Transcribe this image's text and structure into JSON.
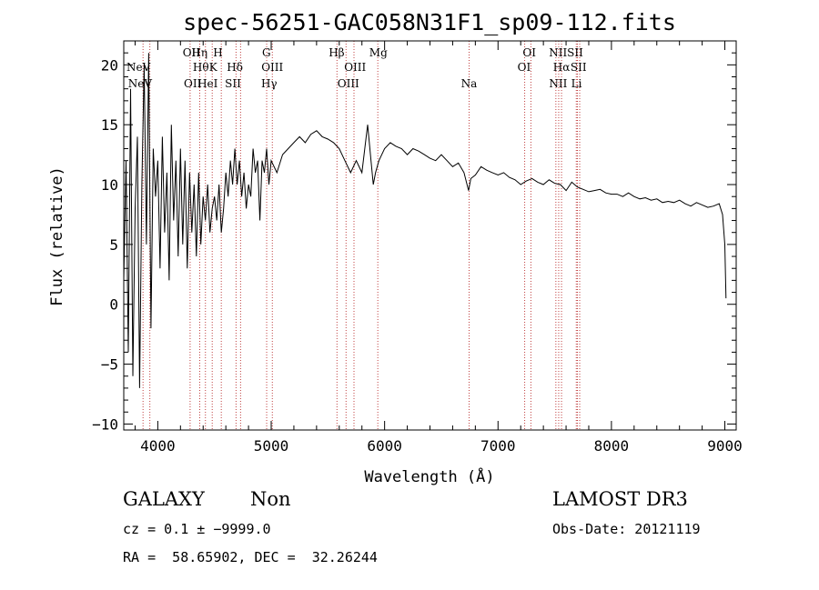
{
  "chart_data": {
    "type": "line",
    "title": "spec-56251-GAC058N31F1_sp09-112.fits",
    "xlabel": "Wavelength (Å)",
    "ylabel": "Flux (relative)",
    "xlim": [
      3700,
      9100
    ],
    "ylim": [
      -10.5,
      22
    ],
    "xticks": [
      4000,
      5000,
      6000,
      7000,
      8000,
      9000
    ],
    "yticks": [
      -10,
      -5,
      0,
      5,
      10,
      15,
      20
    ],
    "xtick_labels": [
      "4000",
      "5000",
      "6000",
      "7000",
      "8000",
      "9000"
    ],
    "ytick_labels": [
      "−10",
      "−5",
      "0",
      "5",
      "10",
      "15",
      "20"
    ],
    "grid": false,
    "series": [
      {
        "name": "flux",
        "x": [
          3700,
          3720,
          3740,
          3760,
          3780,
          3800,
          3820,
          3840,
          3860,
          3880,
          3900,
          3920,
          3940,
          3960,
          3980,
          4000,
          4020,
          4040,
          4060,
          4080,
          4100,
          4120,
          4140,
          4160,
          4180,
          4200,
          4220,
          4240,
          4260,
          4280,
          4300,
          4320,
          4340,
          4360,
          4380,
          4400,
          4420,
          4440,
          4460,
          4480,
          4500,
          4520,
          4540,
          4560,
          4580,
          4600,
          4620,
          4640,
          4660,
          4680,
          4700,
          4720,
          4740,
          4760,
          4780,
          4800,
          4820,
          4840,
          4860,
          4880,
          4900,
          4920,
          4940,
          4960,
          4980,
          5000,
          5050,
          5100,
          5150,
          5200,
          5250,
          5300,
          5350,
          5400,
          5450,
          5500,
          5550,
          5600,
          5650,
          5700,
          5750,
          5800,
          5850,
          5880,
          5900,
          5920,
          5950,
          6000,
          6050,
          6100,
          6150,
          6200,
          6250,
          6300,
          6350,
          6400,
          6450,
          6500,
          6550,
          6600,
          6650,
          6700,
          6740,
          6760,
          6800,
          6850,
          6900,
          6950,
          7000,
          7050,
          7100,
          7150,
          7200,
          7250,
          7300,
          7350,
          7400,
          7450,
          7500,
          7550,
          7600,
          7650,
          7700,
          7750,
          7800,
          7850,
          7900,
          7950,
          8000,
          8050,
          8100,
          8150,
          8200,
          8250,
          8300,
          8350,
          8400,
          8450,
          8500,
          8550,
          8600,
          8650,
          8700,
          8750,
          8800,
          8850,
          8900,
          8950,
          8980,
          9000,
          9010
        ],
        "y": [
          2,
          12,
          -4,
          18,
          -6,
          8,
          14,
          -7,
          10,
          20,
          5,
          21,
          -2,
          13,
          9,
          12,
          3,
          14,
          6,
          11,
          2,
          15,
          7,
          12,
          4,
          13,
          5,
          12,
          3,
          11,
          6,
          10,
          4,
          11,
          5,
          9,
          7,
          10,
          6,
          8,
          9,
          7,
          10,
          6,
          8,
          11,
          9,
          12,
          10,
          13,
          10,
          12,
          9,
          11,
          8,
          10,
          9,
          13,
          11,
          12,
          7,
          12,
          11,
          13,
          10,
          12,
          11,
          12.5,
          13,
          13.5,
          14,
          13.5,
          14.2,
          14.5,
          14,
          13.8,
          13.5,
          13,
          12,
          11,
          12,
          11,
          15,
          12,
          10,
          11,
          12,
          13,
          13.5,
          13.2,
          13,
          12.5,
          13,
          12.8,
          12.5,
          12.2,
          12,
          12.5,
          12,
          11.5,
          11.8,
          11,
          9.5,
          10.5,
          10.8,
          11.5,
          11.2,
          11,
          10.8,
          11,
          10.6,
          10.4,
          10,
          10.3,
          10.5,
          10.2,
          10,
          10.4,
          10.1,
          10,
          9.5,
          10.2,
          9.8,
          9.6,
          9.4,
          9.5,
          9.6,
          9.3,
          9.2,
          9.2,
          9,
          9.3,
          9,
          8.8,
          8.9,
          8.7,
          8.8,
          8.5,
          8.6,
          8.5,
          8.7,
          8.4,
          8.2,
          8.5,
          8.3,
          8.1,
          8.2,
          8.4,
          7.5,
          5,
          0.5
        ]
      }
    ],
    "spectral_lines": [
      {
        "label": "NeV",
        "x": 3830,
        "row": 1
      },
      {
        "label": "NeV",
        "x": 3844,
        "row": 2
      },
      {
        "label": "OII",
        "x": 4297,
        "row": 0
      },
      {
        "label": "Hη",
        "x": 4368,
        "row": 0
      },
      {
        "label": "H",
        "x": 4530,
        "row": 0
      },
      {
        "label": "Hθ",
        "x": 4380,
        "row": 1
      },
      {
        "label": "K",
        "x": 4488,
        "row": 1
      },
      {
        "label": "Hδ",
        "x": 4680,
        "row": 1
      },
      {
        "label": "OII",
        "x": 4307,
        "row": 2
      },
      {
        "label": "HeI",
        "x": 4440,
        "row": 2
      },
      {
        "label": "SII",
        "x": 4663,
        "row": 2
      },
      {
        "label": "G",
        "x": 4958,
        "row": 0
      },
      {
        "label": "OIII",
        "x": 5010,
        "row": 1
      },
      {
        "label": "Hγ",
        "x": 4982,
        "row": 2
      },
      {
        "label": "Hβ",
        "x": 5577,
        "row": 0
      },
      {
        "label": "OIII",
        "x": 5740,
        "row": 1
      },
      {
        "label": "OIII",
        "x": 5680,
        "row": 2
      },
      {
        "label": "Mg",
        "x": 5945,
        "row": 0
      },
      {
        "label": "Na",
        "x": 6745,
        "row": 2
      },
      {
        "label": "OI",
        "x": 7276,
        "row": 0
      },
      {
        "label": "OI",
        "x": 7230,
        "row": 1
      },
      {
        "label": "NIISII",
        "x": 7600,
        "row": 0
      },
      {
        "label": "Hα",
        "x": 7560,
        "row": 1
      },
      {
        "label": "SII",
        "x": 7710,
        "row": 1
      },
      {
        "label": "NII",
        "x": 7530,
        "row": 2
      },
      {
        "label": "Li",
        "x": 7692,
        "row": 2
      }
    ],
    "line_markers": [
      3870,
      3930,
      4285,
      4370,
      4420,
      4480,
      4560,
      4690,
      4730,
      4960,
      5010,
      5580,
      5660,
      5730,
      5940,
      6745,
      7235,
      7290,
      7510,
      7535,
      7560,
      7690,
      7700,
      7720
    ]
  },
  "info": {
    "object_class": "GALAXY",
    "subclass": "Non",
    "cz": "cz = 0.1 ± −9999.0",
    "coords": "RA =  58.65902, DEC =  32.26244",
    "survey": "LAMOST DR3",
    "obs_date": "Obs-Date: 20121119"
  },
  "colors": {
    "axis": "#000000",
    "series": "#000000",
    "marker": "#c04040"
  }
}
